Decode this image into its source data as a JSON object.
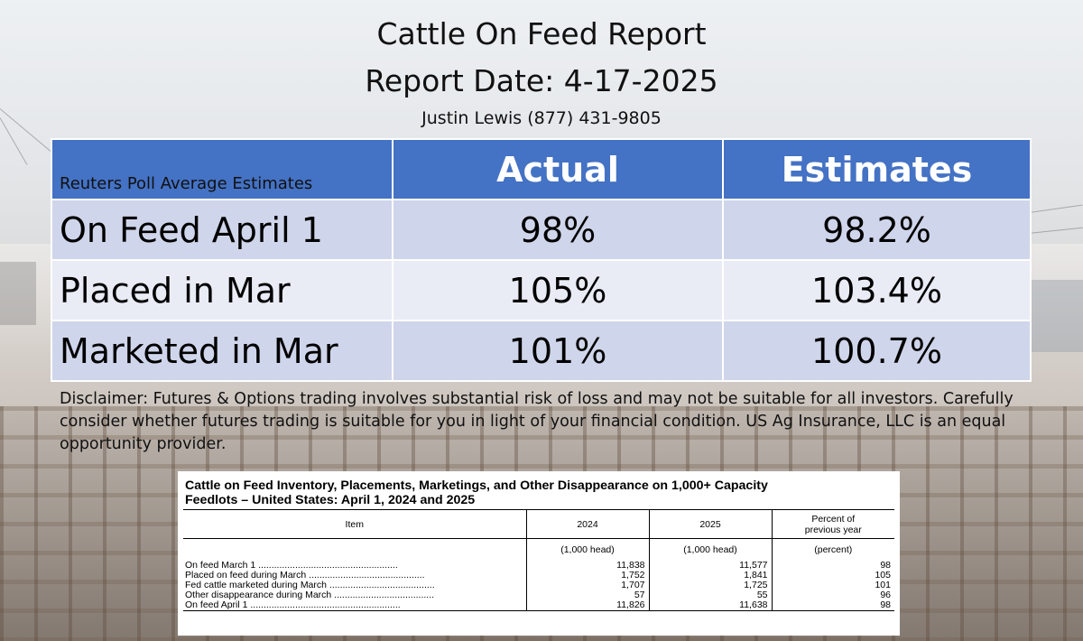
{
  "header": {
    "title": "Cattle On Feed Report",
    "report_date": "Report Date: 4-17-2025",
    "contact": "Justin Lewis (877) 431-9805"
  },
  "estimates_table": {
    "caption": "Reuters Poll Average Estimates",
    "columns": [
      "Actual",
      "Estimates"
    ],
    "rows": [
      {
        "label": "On Feed April 1",
        "actual": "98%",
        "estimate": "98.2%"
      },
      {
        "label": "Placed in Mar",
        "actual": "105%",
        "estimate": "103.4%"
      },
      {
        "label": "Marketed in Mar",
        "actual": "101%",
        "estimate": "100.7%"
      }
    ],
    "colors": {
      "header": "#4472c4",
      "row_odd": "#cfd5ea",
      "row_even": "#e9ebf5"
    }
  },
  "disclaimer": "Disclaimer:  Futures & Options trading involves substantial risk of loss and may not be suitable for all investors.  Carefully consider whether futures trading is suitable for you in light of your financial condition. US Ag Insurance, LLC is an equal opportunity provider.",
  "usda_table": {
    "title_line1": "Cattle on Feed Inventory, Placements, Marketings, and Other Disappearance on 1,000+ Capacity",
    "title_line2": "Feedlots – United States: April 1, 2024 and 2025",
    "headers": {
      "item": "Item",
      "y2024": "2024",
      "y2025": "2025",
      "pct_line1": "Percent of",
      "pct_line2": "previous year"
    },
    "units": {
      "y2024": "(1,000 head)",
      "y2025": "(1,000 head)",
      "pct": "(percent)"
    },
    "rows": [
      {
        "item": "On feed March 1",
        "v2024": "11,838",
        "v2025": "11,577",
        "pct": "98"
      },
      {
        "item": "Placed on feed during March",
        "v2024": "1,752",
        "v2025": "1,841",
        "pct": "105"
      },
      {
        "item": "Fed cattle marketed during March",
        "v2024": "1,707",
        "v2025": "1,725",
        "pct": "101"
      },
      {
        "item": "Other disappearance during March",
        "v2024": "57",
        "v2025": "55",
        "pct": "96"
      },
      {
        "item": "On feed April 1",
        "v2024": "11,826",
        "v2025": "11,638",
        "pct": "98"
      }
    ]
  }
}
